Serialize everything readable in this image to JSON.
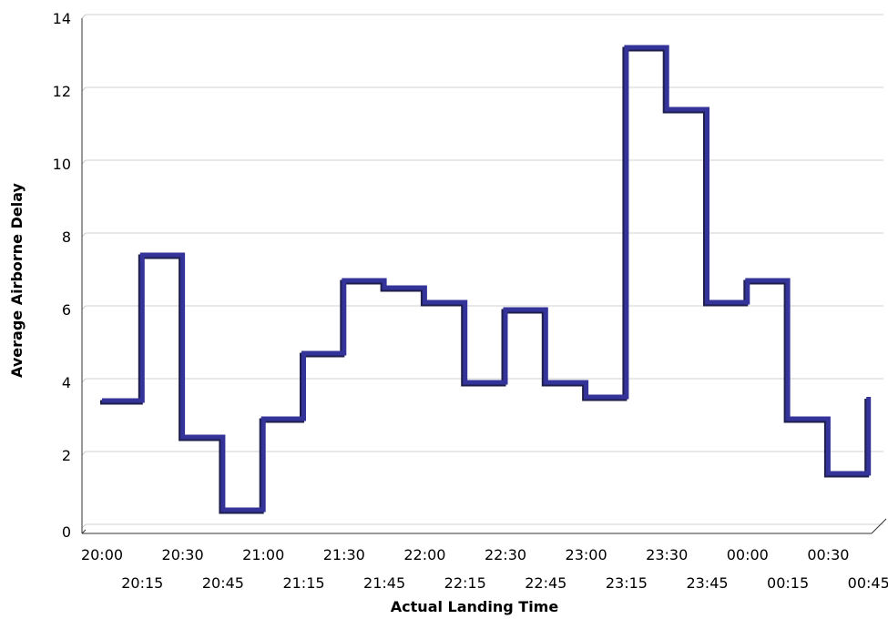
{
  "chart_data": {
    "type": "line",
    "step": true,
    "title": "",
    "xlabel": "Actual Landing Time",
    "ylabel": "Average Airborne Delay",
    "ylim": [
      0,
      14
    ],
    "yticks": [
      "0",
      "2",
      "4",
      "6",
      "8",
      "10",
      "12",
      "14"
    ],
    "x_tick_labels": [
      "20:00",
      "20:15",
      "20:30",
      "20:45",
      "21:00",
      "21:15",
      "21:30",
      "21:45",
      "22:00",
      "22:15",
      "22:30",
      "22:45",
      "23:00",
      "23:15",
      "23:30",
      "23:45",
      "00:00",
      "00:15",
      "00:30",
      "00:45"
    ],
    "grid": true,
    "series": [
      {
        "x": [
          "20:00",
          "20:15",
          "20:30",
          "20:45",
          "21:00",
          "21:15",
          "21:30",
          "21:45",
          "22:00",
          "22:15",
          "22:30",
          "22:45",
          "23:00",
          "23:15",
          "23:30",
          "23:45",
          "00:00",
          "00:15",
          "00:30",
          "00:45"
        ],
        "values": [
          3.5,
          7.5,
          2.5,
          0.5,
          3.0,
          4.8,
          6.8,
          6.6,
          6.2,
          4.0,
          6.0,
          4.0,
          3.6,
          13.2,
          11.5,
          6.2,
          6.8,
          3.0,
          1.5,
          3.6
        ],
        "color": "#333399",
        "shadow_color": "#1f1f4d"
      }
    ]
  }
}
